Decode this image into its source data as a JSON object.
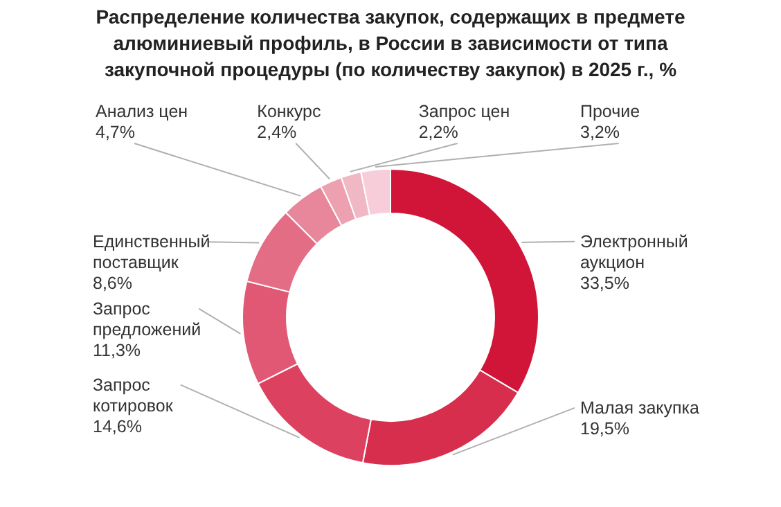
{
  "chart_data": {
    "type": "donut",
    "title": "Распределение количества закупок, содержащих в предмете алюминиевый профиль, в России в зависимости от типа закупочной процедуры (по количеству закупок) в 2025 г., %",
    "categories": [
      "Электронный аукцион",
      "Малая закупка",
      "Запрос котировок",
      "Запрос предложений",
      "Единственный поставщик",
      "Анализ цен",
      "Конкурс",
      "Запрос цен",
      "Прочие"
    ],
    "values": [
      33.5,
      19.5,
      14.6,
      11.3,
      8.6,
      4.7,
      2.4,
      2.2,
      3.2
    ],
    "value_labels": [
      "33,5%",
      "19,5%",
      "14,6%",
      "11,3%",
      "8,6%",
      "4,7%",
      "2,4%",
      "2,2%",
      "3,2%"
    ],
    "colors": [
      "#d01539",
      "#d82e4d",
      "#dc4260",
      "#e05873",
      "#e46d86",
      "#e8879b",
      "#eca0b0",
      "#f0b7c4",
      "#f6cdd8"
    ],
    "legend": false
  }
}
